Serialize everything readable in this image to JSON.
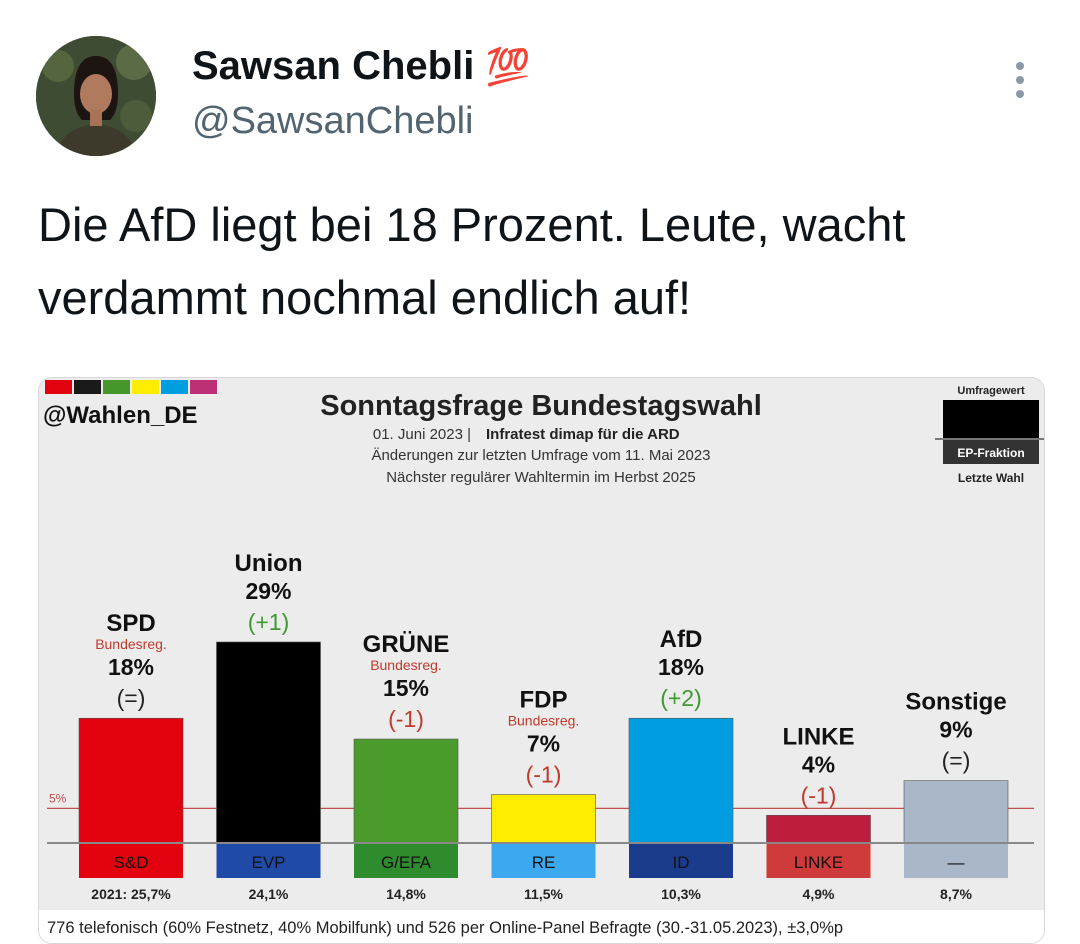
{
  "tweet": {
    "author_name": "Sawsan Chebli",
    "author_emoji": "💯",
    "author_handle": "@SawsanChebli",
    "text": "Die AfD liegt bei 18 Prozent. Leute, wacht verdammt nochmal endlich auf!",
    "avatar_icon": "person-photo-icon",
    "more_icon": "more-vertical-icon"
  },
  "chart_data": {
    "type": "bar",
    "source_tag": "@Wahlen_DE",
    "title": "Sonntagsfrage Bundestagswahl",
    "subtitle_date": "01. Juni 2023 |",
    "subtitle_institute": "Infratest dimap für die ARD",
    "subtitle_change": "Änderungen zur letzten Umfrage vom 11. Mai 2023",
    "subtitle_next": "Nächster regulärer Wahltermin im Herbst 2025",
    "legend_top": "Umfragewert",
    "legend_mid": "EP-Fraktion",
    "legend_bottom": "Letzte Wahl",
    "threshold_label": "5%",
    "threshold_value": 5,
    "ylim": [
      0,
      29
    ],
    "footer": "776 telefonisch (60% Festnetz, 40% Mobilfunk) und 526 per Online-Panel Befragte (30.-31.05.2023), ±3,0%p",
    "logo_colors": [
      "#e3000f",
      "#1a1a1a",
      "#46962b",
      "#ffed00",
      "#009ee0",
      "#be3075"
    ],
    "parties": [
      {
        "name": "SPD",
        "note": "Bundesreg.",
        "value": 18,
        "value_label": "18%",
        "change": "(=)",
        "change_color": "#222222",
        "ep_group": "S&D",
        "last_label": "2021: 25,7%",
        "color": "#e3000f",
        "ep_color": "#e3000f"
      },
      {
        "name": "Union",
        "note": "",
        "value": 29,
        "value_label": "29%",
        "change": "(+1)",
        "change_color": "#3c9a2e",
        "ep_group": "EVP",
        "last_label": "24,1%",
        "color": "#000000",
        "ep_color": "#1f4aa8"
      },
      {
        "name": "GRÜNE",
        "note": "Bundesreg.",
        "value": 15,
        "value_label": "15%",
        "change": "(-1)",
        "change_color": "#c0392b",
        "ep_group": "G/EFA",
        "last_label": "14,8%",
        "color": "#4a9a2c",
        "ep_color": "#2e8b2e"
      },
      {
        "name": "FDP",
        "note": "Bundesreg.",
        "value": 7,
        "value_label": "7%",
        "change": "(-1)",
        "change_color": "#c0392b",
        "ep_group": "RE",
        "last_label": "11,5%",
        "color": "#ffed00",
        "ep_color": "#3ba8f0"
      },
      {
        "name": "AfD",
        "note": "",
        "value": 18,
        "value_label": "18%",
        "change": "(+2)",
        "change_color": "#3c9a2e",
        "ep_group": "ID",
        "last_label": "10,3%",
        "color": "#009ee0",
        "ep_color": "#1b3c8c"
      },
      {
        "name": "LINKE",
        "note": "",
        "value": 4,
        "value_label": "4%",
        "change": "(-1)",
        "change_color": "#c0392b",
        "ep_group": "LINKE",
        "last_label": "4,9%",
        "color": "#be1e3c",
        "ep_color": "#cf3a3a"
      },
      {
        "name": "Sonstige",
        "note": "",
        "value": 9,
        "value_label": "9%",
        "change": "(=)",
        "change_color": "#222222",
        "ep_group": "—",
        "last_label": "8,7%",
        "color": "#a9b7c9",
        "ep_color": "#a9b7c9"
      }
    ]
  }
}
